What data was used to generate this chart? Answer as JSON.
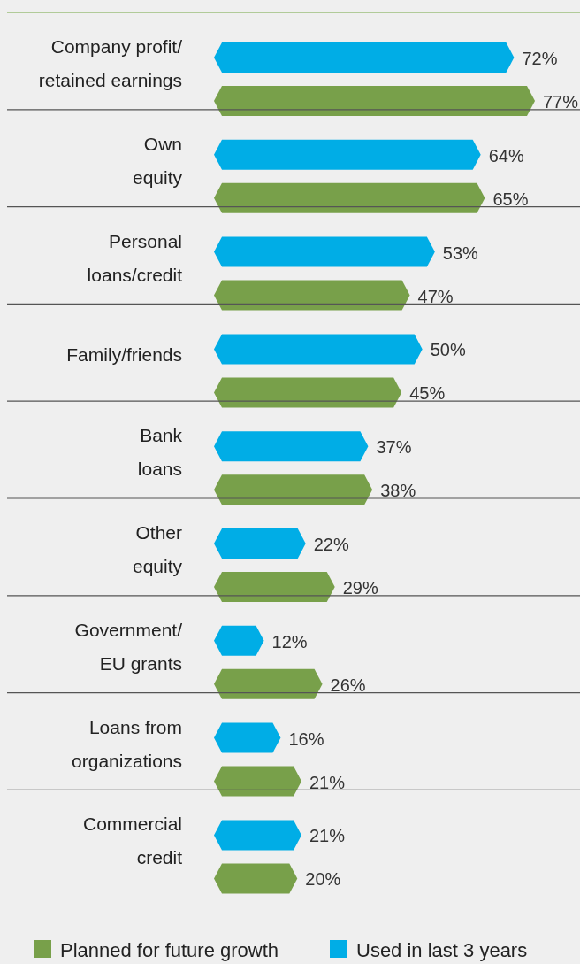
{
  "chart_data": {
    "type": "bar",
    "orientation": "horizontal",
    "categories": [
      "Company profit/\nretained earnings",
      "Own\nequity",
      "Personal\nloans/credit",
      "Family/friends",
      "Bank\nloans",
      "Other\nequity",
      "Government/\nEU grants",
      "Loans from\norganizations",
      "Commercial\ncredit"
    ],
    "series": [
      {
        "name": "Used in last 3 years",
        "color": "#00ade6",
        "values": [
          72,
          64,
          53,
          50,
          37,
          22,
          12,
          16,
          21
        ],
        "value_labels": [
          "72%",
          "64%",
          "53%",
          "50%",
          "37%",
          "22%",
          "12%",
          "16%",
          "21%"
        ]
      },
      {
        "name": "Planned for future growth",
        "color": "#78a04a",
        "values": [
          77,
          65,
          47,
          45,
          38,
          29,
          26,
          21,
          20
        ],
        "value_labels": [
          "77%",
          "65%",
          "47%",
          "45%",
          "38%",
          "29%",
          "26%",
          "21%",
          "20%"
        ]
      }
    ],
    "legend": "bottom"
  }
}
